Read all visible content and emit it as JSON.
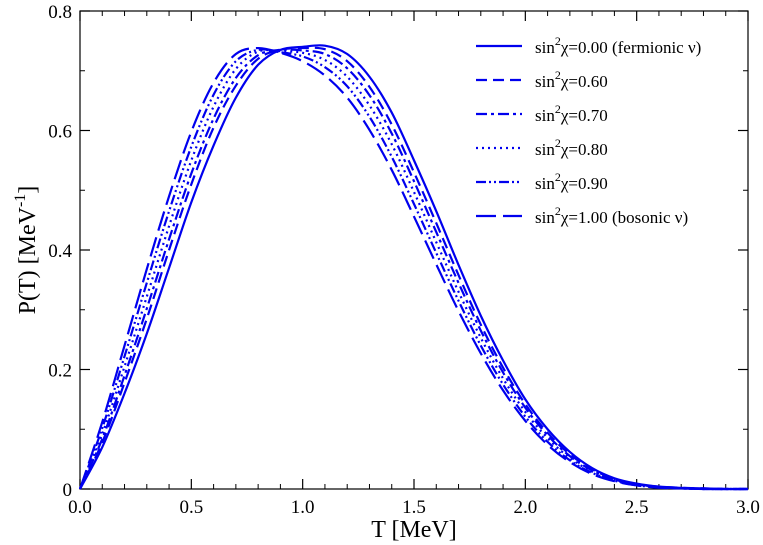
{
  "chart_data": {
    "type": "line",
    "title": "",
    "xlabel": "T [MeV]",
    "ylabel": {
      "base": "P(T) [MeV",
      "sup": "-1",
      "close": "]"
    },
    "xlim": [
      0.0,
      3.0
    ],
    "ylim": [
      0.0,
      0.8
    ],
    "xticks": [
      "0.0",
      "0.5",
      "1.0",
      "1.5",
      "2.0",
      "2.5",
      "3.0"
    ],
    "yticks": [
      "0",
      "0.2",
      "0.4",
      "0.6",
      "0.8"
    ],
    "grid": false,
    "legend_position": "top-right",
    "line_color": "#0000ee",
    "x": [
      0.0,
      0.1,
      0.2,
      0.3,
      0.4,
      0.5,
      0.6,
      0.7,
      0.8,
      0.9,
      1.0,
      1.1,
      1.2,
      1.3,
      1.4,
      1.5,
      1.6,
      1.7,
      1.8,
      1.9,
      2.0,
      2.1,
      2.2,
      2.3,
      2.4,
      2.5,
      2.6,
      2.7,
      2.8,
      2.9,
      3.0
    ],
    "series": [
      {
        "name": "sin2chi=0.00 (fermionic nu)",
        "legend": {
          "pre": "sin",
          "sup": "2",
          "post": "χ=0.00 (fermionic ν)"
        },
        "dash": "solid",
        "values": [
          0.0,
          0.07,
          0.16,
          0.26,
          0.37,
          0.48,
          0.575,
          0.655,
          0.71,
          0.735,
          0.74,
          0.742,
          0.728,
          0.69,
          0.63,
          0.55,
          0.465,
          0.375,
          0.29,
          0.215,
          0.15,
          0.1,
          0.062,
          0.035,
          0.018,
          0.009,
          0.004,
          0.002,
          0.001,
          0.0,
          0.0
        ]
      },
      {
        "name": "sin2chi=0.60",
        "legend": {
          "pre": "sin",
          "sup": "2",
          "post": "χ=0.60"
        },
        "dash": "dashed",
        "values": [
          0.0,
          0.078,
          0.178,
          0.285,
          0.4,
          0.51,
          0.605,
          0.675,
          0.72,
          0.735,
          0.738,
          0.736,
          0.716,
          0.673,
          0.61,
          0.53,
          0.445,
          0.358,
          0.275,
          0.203,
          0.142,
          0.094,
          0.058,
          0.033,
          0.017,
          0.008,
          0.004,
          0.002,
          0.001,
          0.0,
          0.0
        ]
      },
      {
        "name": "sin2chi=0.70",
        "legend": {
          "pre": "sin",
          "sup": "2",
          "post": "χ=0.70"
        },
        "dash": "dashdot",
        "values": [
          0.0,
          0.084,
          0.19,
          0.302,
          0.418,
          0.528,
          0.62,
          0.688,
          0.726,
          0.735,
          0.734,
          0.728,
          0.704,
          0.659,
          0.595,
          0.515,
          0.43,
          0.345,
          0.265,
          0.195,
          0.136,
          0.09,
          0.055,
          0.031,
          0.016,
          0.008,
          0.003,
          0.001,
          0.0,
          0.0,
          0.0
        ]
      },
      {
        "name": "sin2chi=0.80",
        "legend": {
          "pre": "sin",
          "sup": "2",
          "post": "χ=0.80"
        },
        "dash": "dotted",
        "values": [
          0.0,
          0.092,
          0.205,
          0.322,
          0.44,
          0.55,
          0.64,
          0.703,
          0.732,
          0.733,
          0.73,
          0.718,
          0.69,
          0.642,
          0.577,
          0.497,
          0.413,
          0.33,
          0.253,
          0.185,
          0.129,
          0.085,
          0.052,
          0.029,
          0.015,
          0.007,
          0.003,
          0.001,
          0.0,
          0.0,
          0.0
        ]
      },
      {
        "name": "sin2chi=0.90",
        "legend": {
          "pre": "sin",
          "sup": "2",
          "post": "χ=0.90"
        },
        "dash": "dashdotdot",
        "values": [
          0.0,
          0.102,
          0.222,
          0.345,
          0.465,
          0.573,
          0.66,
          0.716,
          0.735,
          0.731,
          0.724,
          0.706,
          0.674,
          0.623,
          0.556,
          0.477,
          0.395,
          0.315,
          0.24,
          0.175,
          0.121,
          0.079,
          0.048,
          0.027,
          0.014,
          0.006,
          0.003,
          0.001,
          0.0,
          0.0,
          0.0
        ]
      },
      {
        "name": "sin2chi=1.00 (bosonic nu)",
        "legend": {
          "pre": "sin",
          "sup": "2",
          "post": "χ=1.00 (bosonic ν)"
        },
        "dash": "longdash",
        "values": [
          0.0,
          0.112,
          0.24,
          0.368,
          0.49,
          0.598,
          0.68,
          0.728,
          0.738,
          0.73,
          0.716,
          0.692,
          0.655,
          0.601,
          0.534,
          0.456,
          0.376,
          0.298,
          0.227,
          0.165,
          0.114,
          0.074,
          0.045,
          0.025,
          0.013,
          0.006,
          0.002,
          0.001,
          0.0,
          0.0,
          0.0
        ]
      }
    ]
  }
}
